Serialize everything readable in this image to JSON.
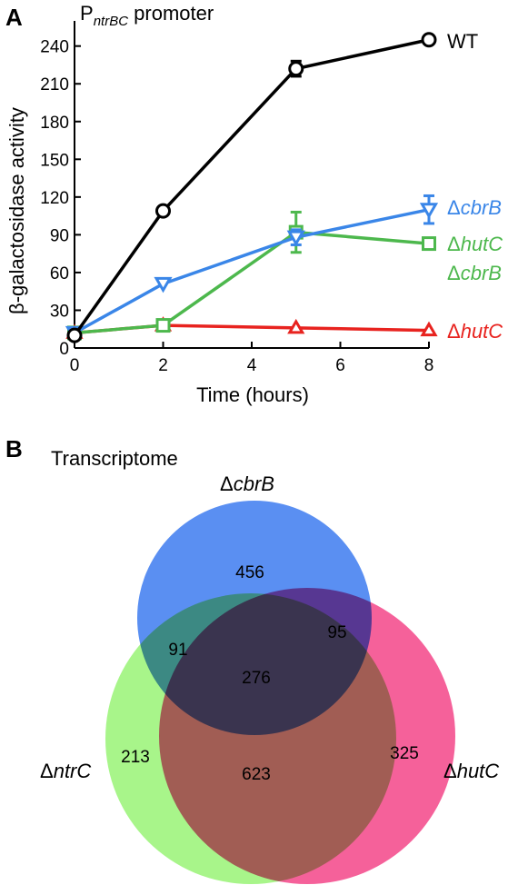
{
  "panel_a": {
    "letter": "A",
    "title_main": "P",
    "title_sub": "ntrBC",
    "title_rest": " promoter"
  },
  "panel_b": {
    "letter": "B",
    "title": "Transcriptome"
  },
  "chart_data": [
    {
      "type": "line",
      "xlabel": "Time (hours)",
      "ylabel": "β-galactosidase activity",
      "xlim": [
        0,
        8
      ],
      "ylim": [
        0,
        260
      ],
      "xticks": [
        0,
        2,
        4,
        6,
        8
      ],
      "yticks": [
        0,
        30,
        60,
        90,
        120,
        150,
        180,
        210,
        240
      ],
      "grid": false,
      "legend": "inline-right",
      "series": [
        {
          "name": "WT",
          "prefix": "",
          "italic": "",
          "marker": "circle",
          "color": "#000000",
          "x": [
            0,
            2,
            5,
            8
          ],
          "y": [
            10,
            109,
            222,
            245
          ],
          "err": [
            0,
            0,
            6,
            2
          ]
        },
        {
          "name": "ΔcbrB",
          "prefix": "Δ",
          "italic": "cbrB",
          "marker": "triangle-down",
          "color": "#3a86e8",
          "x": [
            0,
            2,
            5,
            8
          ],
          "y": [
            12,
            51,
            88,
            110
          ],
          "err": [
            0,
            0,
            6,
            11
          ]
        },
        {
          "name": "ΔhutC ΔcbrB",
          "prefix": "Δ",
          "italic": "hutC",
          "line2_prefix": "Δ",
          "line2_italic": "cbrB",
          "marker": "square",
          "color": "#4db84d",
          "x": [
            0,
            2,
            5,
            8
          ],
          "y": [
            12,
            18,
            92,
            83
          ],
          "err": [
            0,
            0,
            16,
            0
          ]
        },
        {
          "name": "ΔhutC",
          "prefix": "Δ",
          "italic": "hutC",
          "marker": "triangle-up",
          "color": "#e8231f",
          "x": [
            0,
            2,
            5,
            8
          ],
          "y": [
            12,
            18,
            16,
            14
          ],
          "err": [
            0,
            0,
            0,
            0
          ]
        }
      ]
    },
    {
      "type": "venn",
      "sets": [
        {
          "name": "ΔcbrB",
          "prefix": "Δ",
          "italic": "cbrB",
          "color": "#5a8ff2"
        },
        {
          "name": "ΔntrC",
          "prefix": "Δ",
          "italic": "ntrC",
          "color": "#a8f58a"
        },
        {
          "name": "ΔhutC",
          "prefix": "Δ",
          "italic": "hutC",
          "color": "#f5619a"
        }
      ],
      "regions": {
        "cbrB_only": "456",
        "cbrB_ntrC": "91",
        "cbrB_hutC": "95",
        "all_three": "276",
        "ntrC_only": "213",
        "ntrC_hutC": "623",
        "hutC_only": "325"
      }
    }
  ]
}
